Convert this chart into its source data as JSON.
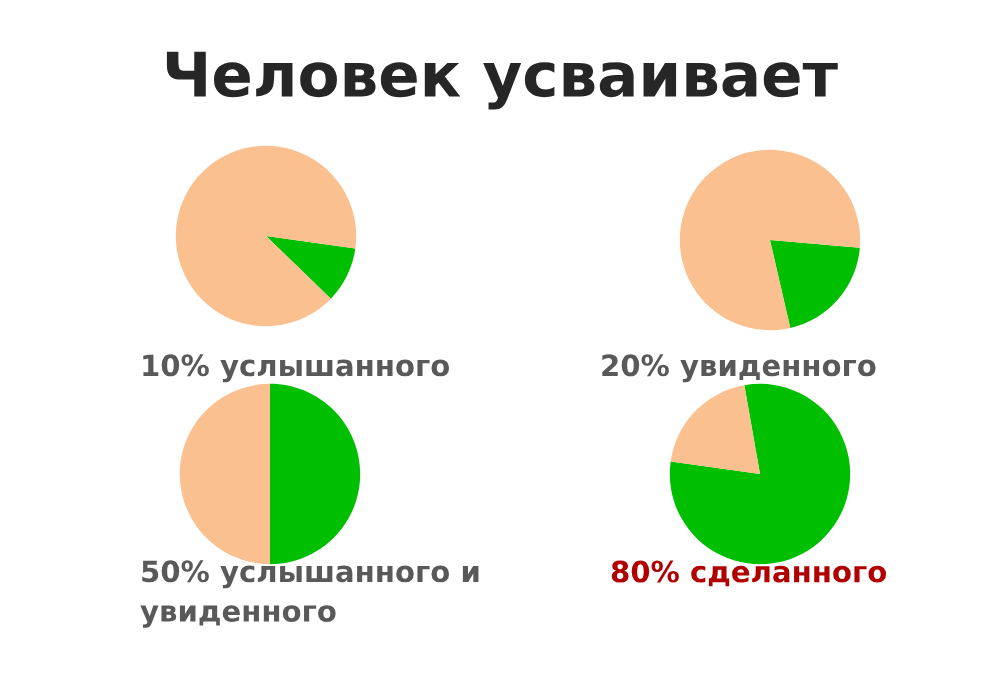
{
  "chart_data": [
    {
      "type": "pie",
      "title": "10% услышанного",
      "annotations": [
        "Человек усваивает"
      ],
      "categories": [
        null,
        null
      ],
      "values": [
        10,
        90
      ],
      "colors": [
        "#00bf00",
        "#fac090"
      ]
    },
    {
      "type": "pie",
      "title": "20% увиденного",
      "categories": [
        null,
        null
      ],
      "values": [
        20,
        80
      ],
      "colors": [
        "#00bf00",
        "#fac090"
      ]
    },
    {
      "type": "pie",
      "title": "50% услышанного и\nувиденного",
      "categories": [
        null,
        null
      ],
      "values": [
        50,
        50
      ],
      "colors": [
        "#00bf00",
        "#fac090"
      ]
    },
    {
      "type": "pie",
      "title": "80% сделанного",
      "categories": [
        null,
        null
      ],
      "values": [
        80,
        20
      ],
      "colors": [
        "#00bf00",
        "#fac090"
      ]
    }
  ]
}
